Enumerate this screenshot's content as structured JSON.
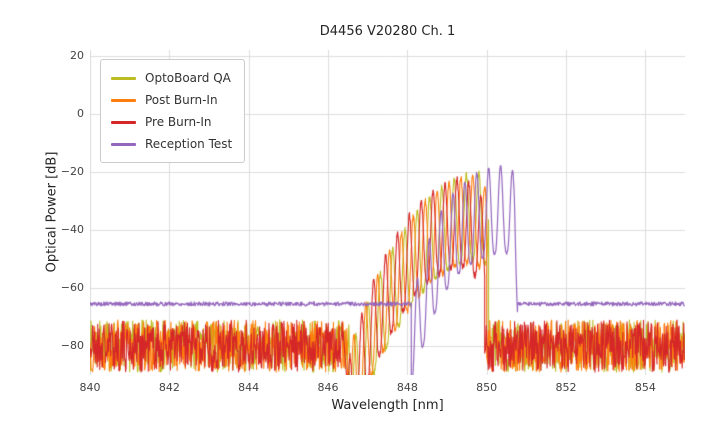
{
  "figure": {
    "background": "#ffffff"
  },
  "chart_data": {
    "type": "line",
    "title": "D4456 V20280 Ch. 1",
    "xlabel": "Wavelength [nm]",
    "ylabel": "Optical Power [dB]",
    "xlim": [
      840,
      855
    ],
    "ylim": [
      -90,
      22
    ],
    "xticks": [
      840,
      842,
      844,
      846,
      848,
      850,
      852,
      854
    ],
    "yticks": [
      20,
      0,
      -20,
      -40,
      -60,
      -80
    ],
    "grid": true,
    "grid_color": "#dcdcdc",
    "text_color": "#262626",
    "tick_color": "#444444",
    "legend_position": "upper-left",
    "series": [
      {
        "name": "OptoBoard QA",
        "color": "#bcbd22",
        "seed": 7,
        "line_width": 1.1,
        "floor_regions": [
          {
            "x_start": 840.0,
            "x_end": 846.55,
            "base": -80,
            "spread": 9
          },
          {
            "x_start": 850.05,
            "x_end": 855.0,
            "base": -80,
            "spread": 9
          }
        ],
        "spectrum": {
          "x_start": 846.55,
          "x_end": 850.05,
          "mode_spacing": 0.31,
          "peak_ref": 848.25,
          "valley_drop": 30,
          "jitter": 2.0,
          "envelope": [
            [
              846.55,
              -82
            ],
            [
              847.2,
              -58
            ],
            [
              847.7,
              -45
            ],
            [
              848.2,
              -34
            ],
            [
              848.7,
              -27
            ],
            [
              849.1,
              -23
            ],
            [
              849.5,
              -21
            ],
            [
              849.9,
              -20
            ],
            [
              850.05,
              -24
            ]
          ]
        }
      },
      {
        "name": "Post Burn-In",
        "color": "#ff7f0e",
        "seed": 13,
        "line_width": 1.1,
        "floor_regions": [
          {
            "x_start": 840.0,
            "x_end": 846.5,
            "base": -80,
            "spread": 9
          },
          {
            "x_start": 850.0,
            "x_end": 855.0,
            "base": -80,
            "spread": 9
          }
        ],
        "spectrum": {
          "x_start": 846.5,
          "x_end": 850.0,
          "mode_spacing": 0.3,
          "peak_ref": 848.15,
          "valley_drop": 30,
          "jitter": 2.0,
          "envelope": [
            [
              846.5,
              -82
            ],
            [
              847.1,
              -60
            ],
            [
              847.6,
              -46
            ],
            [
              848.1,
              -36
            ],
            [
              848.5,
              -29
            ],
            [
              848.9,
              -25
            ],
            [
              849.3,
              -22
            ],
            [
              849.7,
              -21
            ],
            [
              850.0,
              -26
            ]
          ]
        }
      },
      {
        "name": "Pre Burn-In",
        "color": "#d62728",
        "seed": 21,
        "line_width": 1.1,
        "floor_regions": [
          {
            "x_start": 840.0,
            "x_end": 846.4,
            "base": -80,
            "spread": 9
          },
          {
            "x_start": 849.95,
            "x_end": 855.0,
            "base": -80,
            "spread": 9
          }
        ],
        "spectrum": {
          "x_start": 846.5,
          "x_end": 849.95,
          "mode_spacing": 0.3,
          "peak_ref": 848.05,
          "valley_drop": 30,
          "jitter": 2.0,
          "envelope": [
            [
              846.5,
              -86
            ],
            [
              847.0,
              -62
            ],
            [
              847.4,
              -50
            ],
            [
              847.8,
              -40
            ],
            [
              848.2,
              -32
            ],
            [
              848.6,
              -27
            ],
            [
              849.0,
              -24
            ],
            [
              849.3,
              -22
            ],
            [
              849.6,
              -24
            ],
            [
              849.95,
              -30
            ]
          ]
        }
      },
      {
        "name": "Reception Test",
        "color": "#9467bd",
        "seed": 5,
        "line_width": 1.2,
        "floor_regions": [
          {
            "x_start": 840.0,
            "x_end": 848.1,
            "base": -65.5,
            "spread": 0.7
          },
          {
            "x_start": 850.78,
            "x_end": 855.0,
            "base": -65.5,
            "spread": 0.7
          }
        ],
        "spectrum": {
          "x_start": 848.1,
          "x_end": 850.78,
          "mode_spacing": 0.3,
          "peak_ref": 850.35,
          "valley_drop": 30,
          "jitter": 0.8,
          "envelope": [
            [
              848.1,
              -64
            ],
            [
              848.5,
              -45
            ],
            [
              848.9,
              -32
            ],
            [
              849.3,
              -25
            ],
            [
              849.7,
              -20.5
            ],
            [
              850.1,
              -18.5
            ],
            [
              850.45,
              -17.5
            ],
            [
              850.7,
              -20
            ],
            [
              850.78,
              -40
            ]
          ]
        }
      }
    ]
  }
}
